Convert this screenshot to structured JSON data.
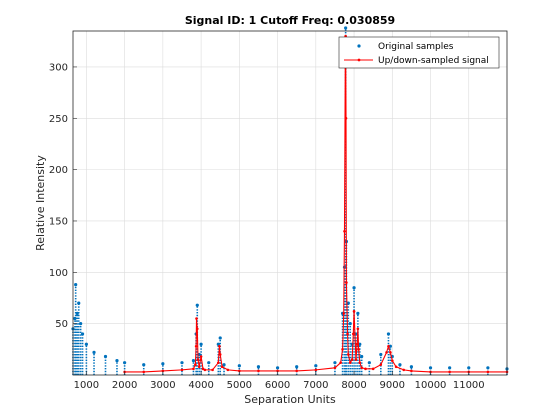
{
  "chart_data": {
    "type": "scatter",
    "title": "Signal ID: 1  Cutoff Freq: 0.030859",
    "xlabel": "Separation Units",
    "ylabel": "Relative Intensity",
    "xlim": [
      650,
      12000
    ],
    "ylim": [
      0,
      335
    ],
    "x_ticks": [
      1000,
      2000,
      3000,
      4000,
      5000,
      6000,
      7000,
      8000,
      9000,
      10000,
      11000
    ],
    "y_ticks": [
      50,
      100,
      150,
      200,
      250,
      300
    ],
    "grid": true,
    "legend_placement": "top-right",
    "colors": {
      "original": "#0072bd",
      "resampled": "#ff0000"
    },
    "series": [
      {
        "name": "Original samples",
        "style": "dots",
        "x": [
          650,
          700,
          720,
          760,
          800,
          850,
          900,
          1000,
          1200,
          1500,
          1800,
          2000,
          2500,
          3000,
          3500,
          3800,
          3870,
          3900,
          3950,
          4000,
          4200,
          4450,
          4500,
          4600,
          5000,
          5500,
          6000,
          6500,
          7000,
          7500,
          7700,
          7750,
          7780,
          7800,
          7850,
          7900,
          7950,
          8000,
          8050,
          8100,
          8150,
          8200,
          8400,
          8700,
          8900,
          8950,
          9000,
          9200,
          9500,
          10000,
          10500,
          11000,
          11500,
          12000
        ],
        "y": [
          45,
          55,
          88,
          60,
          70,
          50,
          40,
          30,
          22,
          18,
          14,
          12,
          10,
          11,
          12,
          14,
          40,
          68,
          20,
          30,
          12,
          30,
          36,
          10,
          9,
          8,
          7,
          8,
          9,
          12,
          60,
          105,
          338,
          130,
          70,
          50,
          30,
          85,
          40,
          60,
          30,
          18,
          12,
          20,
          40,
          28,
          18,
          10,
          8,
          7,
          7,
          7,
          7,
          6
        ]
      },
      {
        "name": "Up/down-sampled signal",
        "style": "line",
        "x": [
          2000,
          2500,
          3000,
          3500,
          3800,
          3850,
          3870,
          3880,
          3900,
          3920,
          3950,
          4000,
          4050,
          4100,
          4300,
          4450,
          4480,
          4500,
          4550,
          4700,
          5000,
          5500,
          6000,
          6500,
          7000,
          7500,
          7650,
          7700,
          7730,
          7750,
          7770,
          7780,
          7790,
          7800,
          7830,
          7850,
          7900,
          7950,
          7980,
          8000,
          8050,
          8080,
          8100,
          8120,
          8150,
          8200,
          8300,
          8500,
          8700,
          8850,
          8900,
          8950,
          9000,
          9100,
          9300,
          9500,
          10000,
          10500,
          11000,
          11500,
          12000
        ],
        "y": [
          3,
          3,
          4,
          5,
          6,
          10,
          28,
          55,
          45,
          15,
          8,
          18,
          6,
          5,
          5,
          12,
          28,
          20,
          8,
          5,
          4,
          4,
          4,
          4,
          5,
          7,
          12,
          25,
          60,
          140,
          300,
          330,
          250,
          90,
          40,
          20,
          12,
          15,
          40,
          62,
          15,
          30,
          45,
          25,
          12,
          7,
          6,
          6,
          10,
          22,
          28,
          22,
          14,
          8,
          5,
          4,
          3,
          3,
          3,
          3,
          3
        ]
      }
    ]
  }
}
